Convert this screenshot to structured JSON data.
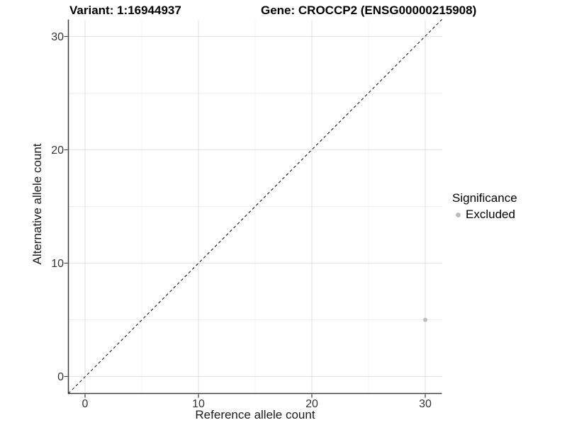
{
  "chart_data": {
    "type": "scatter",
    "title_left": "Variant: 1:16944937",
    "title_right": "Gene: CROCCP2 (ENSG00000215908)",
    "xlabel": "Reference allele count",
    "ylabel": "Alternative allele count",
    "xlim": [
      0,
      30
    ],
    "ylim": [
      0,
      30
    ],
    "x_ticks": [
      0,
      10,
      20,
      30
    ],
    "y_ticks": [
      0,
      10,
      20,
      30
    ],
    "x_minor_ticks": [
      5,
      15,
      25
    ],
    "y_minor_ticks": [
      5,
      15,
      25
    ],
    "grid": true,
    "reference_line": {
      "slope": 1,
      "intercept": 0,
      "style": "dashed",
      "color": "#000000"
    },
    "series": [
      {
        "name": "Excluded",
        "color": "#bdbdbd",
        "point_radius": 3,
        "points": [
          {
            "x": 30,
            "y": 5
          }
        ]
      }
    ],
    "legend": {
      "title": "Significance",
      "position": "right",
      "entries": [
        {
          "label": "Excluded",
          "color": "#bdbdbd"
        }
      ]
    },
    "colors": {
      "axis_line": "#3c3c3c",
      "major_grid": "#e2e2e2",
      "minor_grid": "#f0f0f0",
      "tick": "#3c3c3c",
      "tick_label": "#333333"
    }
  }
}
